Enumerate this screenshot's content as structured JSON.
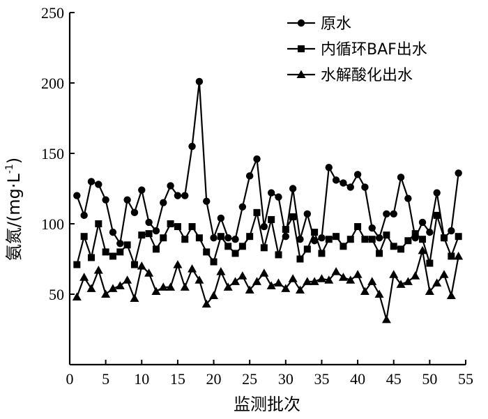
{
  "chart_data": {
    "type": "line",
    "xlabel": "监测批次",
    "ylabel": "氨氮/(mg·L",
    "ylabel_sup": "-1",
    "ylabel_tail": ")",
    "xlim": [
      0,
      55
    ],
    "ylim": [
      0,
      250
    ],
    "xticks": [
      0,
      5,
      10,
      15,
      20,
      25,
      30,
      35,
      40,
      45,
      50,
      55
    ],
    "yticks": [
      50,
      100,
      150,
      200,
      250
    ],
    "legend_position": "top-right",
    "series": [
      {
        "name": "原水",
        "marker": "circle",
        "values": [
          120,
          106,
          130,
          128,
          117,
          94,
          86,
          117,
          108,
          124,
          101,
          95,
          115,
          127,
          120,
          120,
          155,
          201,
          116,
          90,
          104,
          90,
          89,
          112,
          134,
          146,
          98,
          122,
          119,
          91,
          125,
          89,
          107,
          88,
          90,
          140,
          131,
          129,
          126,
          135,
          126,
          97,
          90,
          107,
          107,
          133,
          118,
          90,
          101,
          94,
          122,
          90,
          95,
          136
        ]
      },
      {
        "name": "内循环BAF出水",
        "marker": "square",
        "values": [
          71,
          91,
          76,
          100,
          80,
          77,
          80,
          85,
          71,
          92,
          93,
          82,
          90,
          100,
          98,
          89,
          98,
          90,
          80,
          73,
          91,
          84,
          79,
          84,
          91,
          108,
          83,
          103,
          78,
          96,
          105,
          75,
          82,
          94,
          79,
          89,
          91,
          84,
          89,
          98,
          89,
          89,
          79,
          92,
          84,
          82,
          88,
          93,
          89,
          72,
          106,
          90,
          77,
          91
        ]
      },
      {
        "name": "水解酸化出水",
        "marker": "triangle",
        "values": [
          48,
          62,
          54,
          67,
          50,
          54,
          56,
          60,
          47,
          70,
          65,
          52,
          55,
          55,
          71,
          55,
          68,
          60,
          43,
          49,
          66,
          55,
          59,
          63,
          53,
          59,
          65,
          56,
          58,
          54,
          61,
          53,
          59,
          59,
          61,
          60,
          66,
          62,
          60,
          64,
          52,
          59,
          50,
          32,
          64,
          57,
          59,
          63,
          81,
          52,
          58,
          64,
          49,
          77
        ]
      }
    ]
  }
}
